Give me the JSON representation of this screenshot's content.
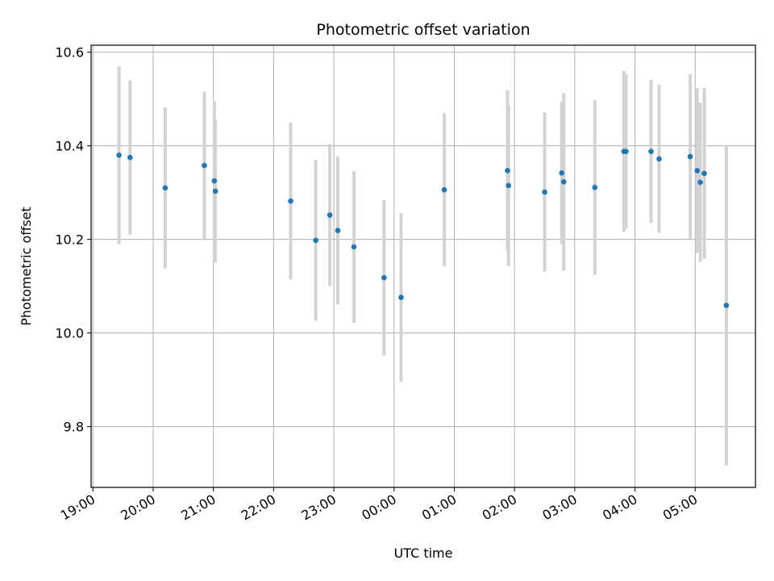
{
  "chart_data": {
    "type": "scatter",
    "title": "Photometric offset variation",
    "xlabel": "UTC time",
    "ylabel": "Photometric offset",
    "x_tick_labels": [
      "19:00",
      "20:00",
      "21:00",
      "22:00",
      "23:00",
      "00:00",
      "01:00",
      "02:00",
      "03:00",
      "04:00",
      "05:00"
    ],
    "y_tick_labels": [
      "9.8",
      "10.0",
      "10.2",
      "10.4",
      "10.6"
    ],
    "y_ticks": [
      9.8,
      10.0,
      10.2,
      10.4,
      10.6
    ],
    "xlim_hours": [
      18.97,
      30.0
    ],
    "ylim": [
      9.67,
      10.615
    ],
    "grid": true,
    "marker_color": "#1f77b4",
    "errorbar_color": "#d3d3d3",
    "points": [
      {
        "time": "19:26",
        "y": 10.38,
        "err": 0.19
      },
      {
        "time": "19:37",
        "y": 10.375,
        "err": 0.165
      },
      {
        "time": "20:12",
        "y": 10.31,
        "err": 0.172
      },
      {
        "time": "20:51",
        "y": 10.358,
        "err": 0.158
      },
      {
        "time": "21:01",
        "y": 10.325,
        "err": 0.17
      },
      {
        "time": "21:02",
        "y": 10.303,
        "err": 0.152
      },
      {
        "time": "22:17",
        "y": 10.282,
        "err": 0.168
      },
      {
        "time": "22:42",
        "y": 10.198,
        "err": 0.172
      },
      {
        "time": "22:56",
        "y": 10.252,
        "err": 0.152
      },
      {
        "time": "23:04",
        "y": 10.219,
        "err": 0.158
      },
      {
        "time": "23:20",
        "y": 10.184,
        "err": 0.162
      },
      {
        "time": "23:50",
        "y": 10.118,
        "err": 0.166
      },
      {
        "time": "00:07",
        "y": 10.076,
        "err": 0.18
      },
      {
        "time": "00:50",
        "y": 10.306,
        "err": 0.164
      },
      {
        "time": "01:53",
        "y": 10.347,
        "err": 0.172
      },
      {
        "time": "01:54",
        "y": 10.315,
        "err": 0.172
      },
      {
        "time": "02:30",
        "y": 10.301,
        "err": 0.17
      },
      {
        "time": "02:47",
        "y": 10.342,
        "err": 0.152
      },
      {
        "time": "02:49",
        "y": 10.323,
        "err": 0.19
      },
      {
        "time": "03:20",
        "y": 10.311,
        "err": 0.187
      },
      {
        "time": "03:49",
        "y": 10.388,
        "err": 0.172
      },
      {
        "time": "03:51",
        "y": 10.388,
        "err": 0.165
      },
      {
        "time": "04:16",
        "y": 10.388,
        "err": 0.153
      },
      {
        "time": "04:24",
        "y": 10.372,
        "err": 0.158
      },
      {
        "time": "04:55",
        "y": 10.377,
        "err": 0.176
      },
      {
        "time": "05:02",
        "y": 10.347,
        "err": 0.176
      },
      {
        "time": "05:05",
        "y": 10.322,
        "err": 0.17
      },
      {
        "time": "05:09",
        "y": 10.341,
        "err": 0.183
      },
      {
        "time": "05:31",
        "y": 10.059,
        "err": 0.342
      }
    ]
  }
}
